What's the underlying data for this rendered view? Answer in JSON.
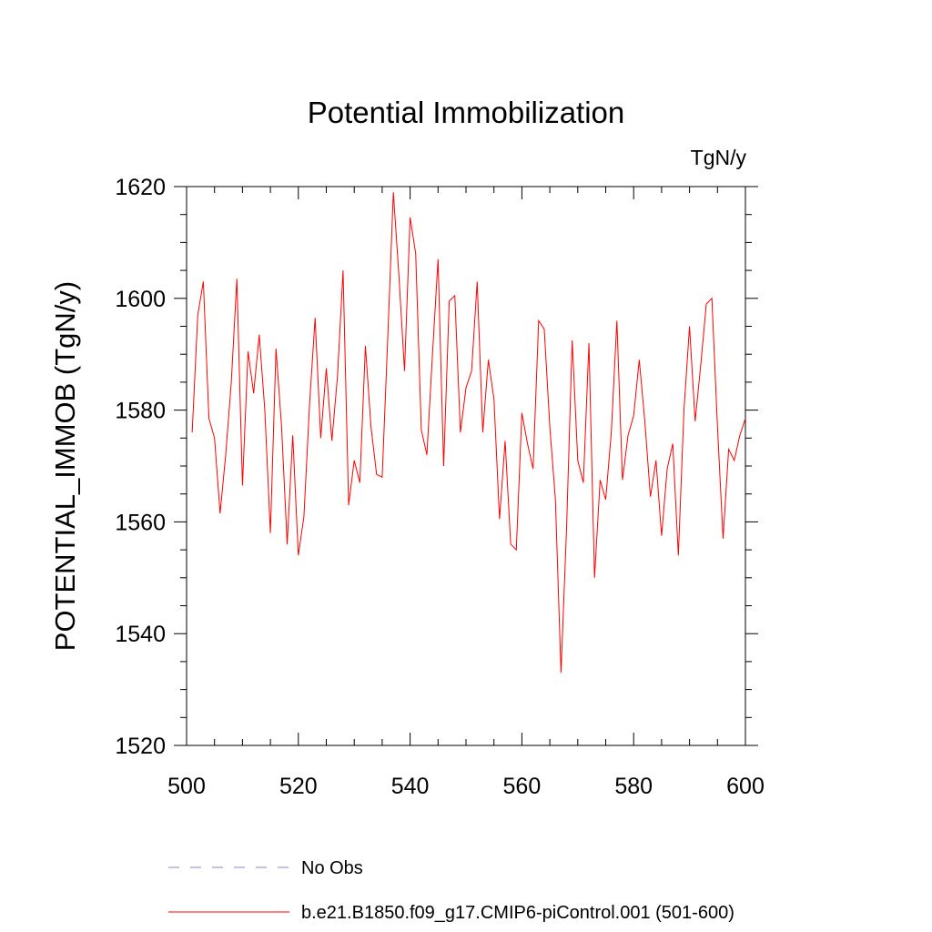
{
  "chart_data": {
    "type": "line",
    "title": "Potential Immobilization",
    "units_label": "TgN/y",
    "xlabel": "",
    "ylabel": "POTENTIAL_IMMOB  (TgN/y)",
    "xlim": [
      500,
      600
    ],
    "ylim": [
      1520,
      1620
    ],
    "x_ticks": [
      500,
      520,
      540,
      560,
      580,
      600
    ],
    "y_ticks": [
      1520,
      1540,
      1560,
      1580,
      1600,
      1620
    ],
    "x_minor_step": 5,
    "y_minor_step": 5,
    "grid": false,
    "legend_position": "bottom-left",
    "series": [
      {
        "name": "No Obs",
        "color": "#8a86c8",
        "style": "dashed",
        "x": [],
        "values": []
      },
      {
        "name": "b.e21.B1850.f09_g17.CMIP6-piControl.001 (501-600)",
        "color": "#ff0000",
        "style": "solid",
        "x": [
          501,
          502,
          503,
          504,
          505,
          506,
          507,
          508,
          509,
          510,
          511,
          512,
          513,
          514,
          515,
          516,
          517,
          518,
          519,
          520,
          521,
          522,
          523,
          524,
          525,
          526,
          527,
          528,
          529,
          530,
          531,
          532,
          533,
          534,
          535,
          536,
          537,
          538,
          539,
          540,
          541,
          542,
          543,
          544,
          545,
          546,
          547,
          548,
          549,
          550,
          551,
          552,
          553,
          554,
          555,
          556,
          557,
          558,
          559,
          560,
          561,
          562,
          563,
          564,
          565,
          566,
          567,
          568,
          569,
          570,
          571,
          572,
          573,
          574,
          575,
          576,
          577,
          578,
          579,
          580,
          581,
          582,
          583,
          584,
          585,
          586,
          587,
          588,
          589,
          590,
          591,
          592,
          593,
          594,
          595,
          596,
          597,
          598,
          599,
          600
        ],
        "values": [
          1576,
          1597,
          1603,
          1578.5,
          1575,
          1561.5,
          1572,
          1585,
          1603.5,
          1566.5,
          1590.5,
          1583,
          1593.5,
          1580,
          1558,
          1591,
          1577,
          1556,
          1575.5,
          1554,
          1561,
          1581,
          1596.5,
          1575,
          1587.5,
          1574.5,
          1586,
          1605,
          1563,
          1571,
          1567,
          1591.5,
          1577,
          1568.5,
          1568,
          1593,
          1619,
          1604,
          1587,
          1614.5,
          1608,
          1576.5,
          1572,
          1590,
          1607,
          1570,
          1599.5,
          1600.5,
          1576,
          1584,
          1587,
          1603,
          1576,
          1589,
          1582,
          1560.5,
          1574.5,
          1556,
          1555,
          1579.5,
          1574,
          1569.5,
          1596,
          1594.5,
          1577,
          1564,
          1533,
          1559,
          1592.5,
          1571,
          1567,
          1592,
          1550,
          1567.5,
          1564,
          1576,
          1596,
          1567.5,
          1575.5,
          1579,
          1589,
          1578,
          1564.5,
          1571,
          1557.5,
          1569.5,
          1574,
          1554,
          1580,
          1595,
          1578,
          1588,
          1599,
          1600,
          1577,
          1557,
          1573,
          1571,
          1575.5,
          1578.5
        ]
      }
    ]
  }
}
